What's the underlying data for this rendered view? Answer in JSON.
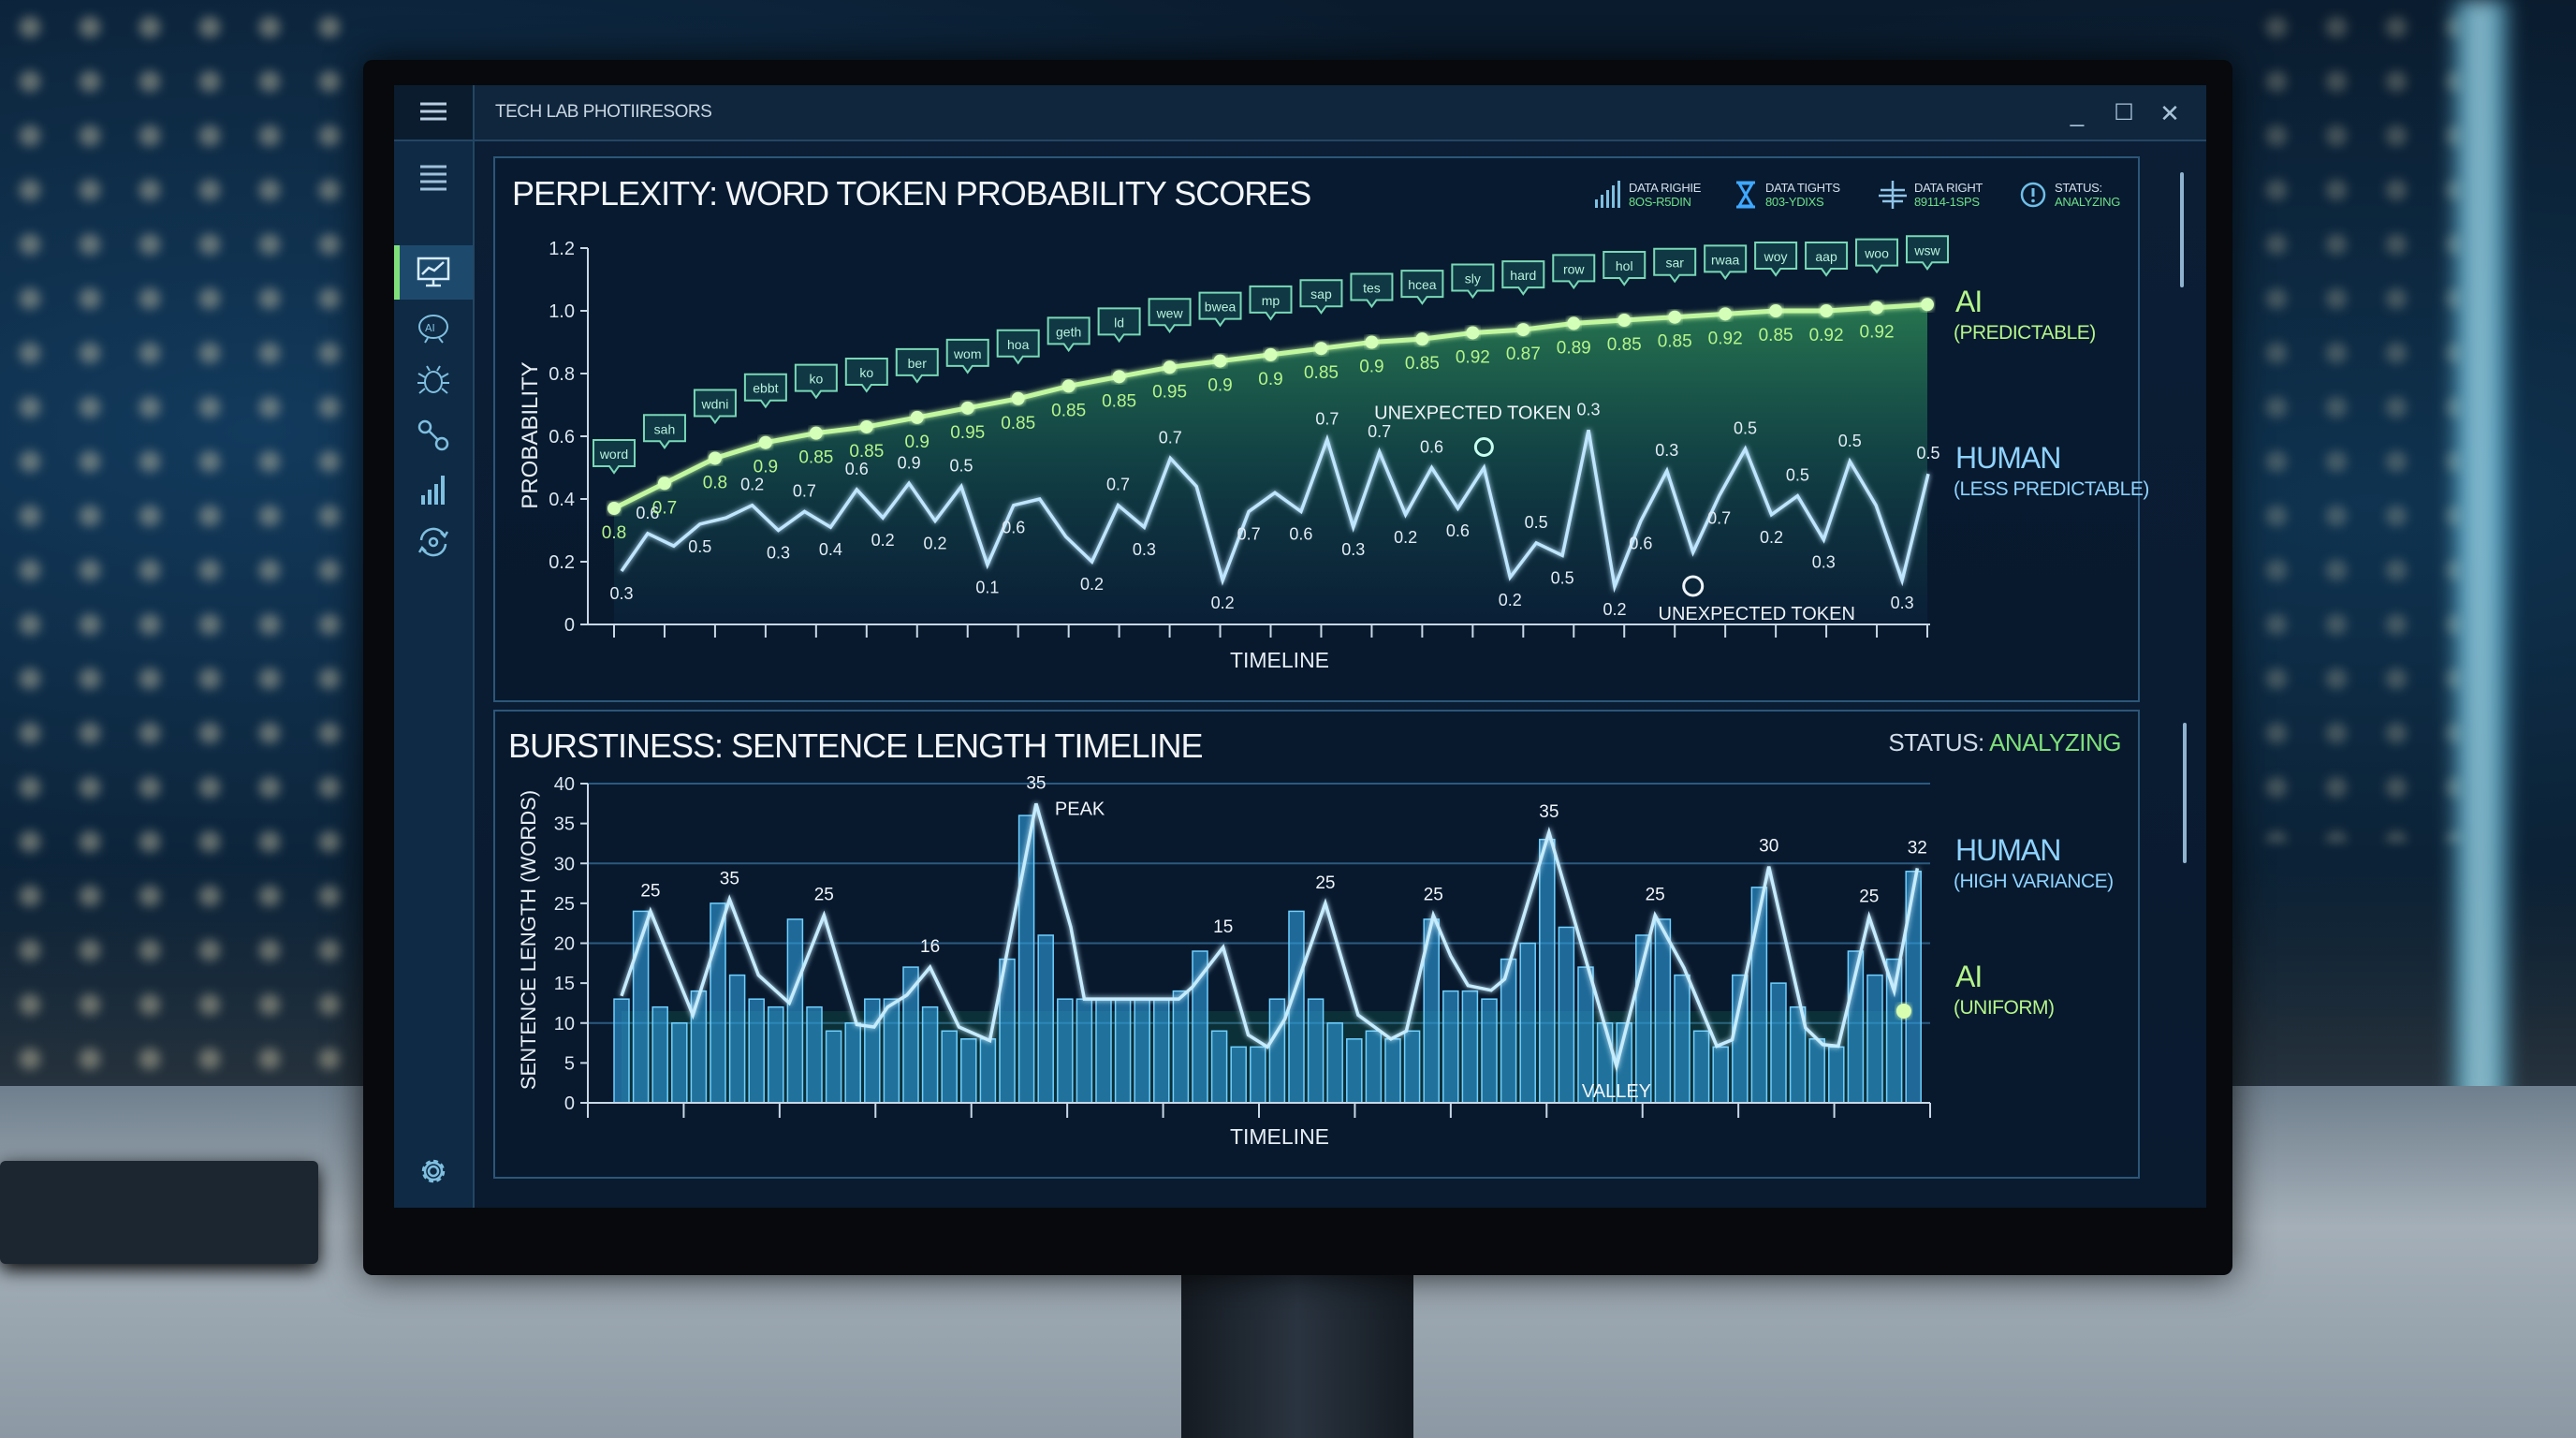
{
  "window": {
    "title": "TECH LAB PHOTIIRESORS",
    "controls": {
      "minimize": "_",
      "maximize": "☐",
      "close": "✕"
    }
  },
  "sidebar": {
    "items": [
      {
        "icon": "list-icon"
      },
      {
        "icon": "monitor-chart-icon",
        "active": true
      },
      {
        "icon": "ai-brain-icon"
      },
      {
        "icon": "bug-icon"
      },
      {
        "icon": "link-icon"
      },
      {
        "icon": "bar-chart-icon"
      },
      {
        "icon": "sync-icon"
      }
    ],
    "settings_icon": "gear-icon"
  },
  "perplexity_panel": {
    "title": "PERPLEXITY: WORD TOKEN PROBABILITY SCORES",
    "stats": [
      {
        "icon": "signal-bars-icon",
        "label": "DATA RIGHIE",
        "value": "8OS-R5DIN"
      },
      {
        "icon": "hourglass-icon",
        "label": "DATA TIGHTS",
        "value": "803-YDIXS"
      },
      {
        "icon": "network-icon",
        "label": "DATA RIGHT",
        "value": "89114-1SPS"
      },
      {
        "icon": "status-icon",
        "label": "STATUS:",
        "value": "ANALYZING"
      }
    ],
    "legend": {
      "ai": "AI",
      "ai_sub": "(PREDICTABLE)",
      "human": "HUMAN",
      "human_sub": "(LESS PREDICTABLE)"
    }
  },
  "burstiness_panel": {
    "title": "BURSTINESS: SENTENCE LENGTH TIMELINE",
    "status_label": "STATUS:",
    "status_value": "ANALYZING",
    "legend": {
      "human": "HUMAN",
      "human_sub": "(HIGH VARIANCE)",
      "ai": "AI",
      "ai_sub": "(UNIFORM)"
    }
  },
  "colors": {
    "ai": "#b4f58a",
    "human": "#8fd3ff",
    "bars": "#2f9fe0",
    "status_green": "#7fe07a",
    "background": "#0a1a2f"
  },
  "chart_data": [
    {
      "type": "line",
      "title": "PERPLEXITY: WORD TOKEN PROBABILITY SCORES",
      "xlabel": "TIMELINE",
      "ylabel": "PROBABILITY",
      "ylim": [
        0,
        1.2
      ],
      "yticks": [
        "0",
        "0.2",
        "0.4",
        "0.6",
        "0.8",
        "1.0",
        "1.2"
      ],
      "grid": false,
      "legend": "right",
      "series": [
        {
          "name": "AI",
          "values": [
            0.37,
            0.45,
            0.53,
            0.58,
            0.61,
            0.63,
            0.66,
            0.69,
            0.72,
            0.76,
            0.79,
            0.82,
            0.84,
            0.86,
            0.88,
            0.9,
            0.91,
            0.93,
            0.94,
            0.96,
            0.97,
            0.98,
            0.99,
            1.0,
            1.0,
            1.01,
            1.02
          ],
          "value_labels": [
            "0.8",
            "0.7",
            "0.8",
            "0.9",
            "0.85",
            "0.85",
            "0.9",
            "0.95",
            "0.85",
            "0.85",
            "0.85",
            "0.95",
            "0.9",
            "0.9",
            "0.85",
            "0.9",
            "0.85",
            "0.92",
            "0.87",
            "0.89",
            "0.85",
            "0.85",
            "0.92",
            "0.85",
            "0.92",
            "0.92",
            ""
          ],
          "token_labels": [
            "word",
            "sah",
            "wdni",
            "ebbt",
            "ko",
            "ko",
            "ber",
            "wom",
            "hoa",
            "geth",
            "ld",
            "wew",
            "bwea",
            "mp",
            "sap",
            "tes",
            "hcea",
            "sly",
            "hard",
            "row",
            "hol",
            "sar",
            "rwaa",
            "woy",
            "aap",
            "woo",
            "wsw"
          ]
        },
        {
          "name": "HUMAN",
          "values": [
            0.17,
            0.29,
            0.25,
            0.32,
            0.34,
            0.38,
            0.3,
            0.36,
            0.31,
            0.43,
            0.34,
            0.45,
            0.33,
            0.44,
            0.19,
            0.38,
            0.4,
            0.28,
            0.2,
            0.38,
            0.31,
            0.53,
            0.44,
            0.14,
            0.36,
            0.42,
            0.36,
            0.59,
            0.31,
            0.55,
            0.35,
            0.5,
            0.37,
            0.5,
            0.15,
            0.26,
            0.22,
            0.62,
            0.12,
            0.33,
            0.49,
            0.23,
            0.41,
            0.56,
            0.35,
            0.41,
            0.27,
            0.52,
            0.38,
            0.14,
            0.48
          ],
          "value_labels": [
            "0.3",
            "0.6",
            "",
            "0.5",
            "",
            "0.2",
            "0.3",
            "0.7",
            "0.4",
            "0.6",
            "0.2",
            "0.9",
            "0.2",
            "0.5",
            "0.1",
            "0.6",
            "",
            "",
            "0.2",
            "0.7",
            "0.3",
            "0.7",
            "",
            "0.2",
            "0.7",
            "",
            "0.6",
            "0.7",
            "0.3",
            "0.7",
            "0.2",
            "0.6",
            "0.6",
            "",
            "0.2",
            "0.5",
            "0.5",
            "0.3",
            "0.2",
            "0.6",
            "0.3",
            "",
            "0.7",
            "0.5",
            "0.2",
            "0.5",
            "0.3",
            "0.5",
            "",
            "0.3",
            "0.5"
          ]
        }
      ],
      "annotations": [
        {
          "text": "UNEXPECTED TOKEN",
          "series": "HUMAN",
          "index": 33,
          "placement": "above"
        },
        {
          "text": "UNEXPECTED TOKEN",
          "series": "HUMAN",
          "index": 41,
          "placement": "below"
        }
      ]
    },
    {
      "type": "bar",
      "title": "BURSTINESS: SENTENCE LENGTH TIMELINE",
      "xlabel": "TIMELINE",
      "ylabel": "SENTENCE LENGTH (WORDS)",
      "ylim": [
        0,
        40
      ],
      "yticks": [
        "0",
        "5",
        "10",
        "15",
        "20",
        "25",
        "30",
        "35",
        "40"
      ],
      "grid": true,
      "legend": "right",
      "bars": [
        13,
        24,
        12,
        10,
        14,
        25,
        16,
        13,
        12,
        23,
        12,
        9,
        10,
        13,
        13,
        17,
        12,
        9,
        8,
        8,
        18,
        36,
        21,
        13,
        13,
        13,
        13,
        13,
        13,
        14,
        19,
        9,
        7,
        7,
        13,
        24,
        13,
        10,
        8,
        9,
        8,
        9,
        23,
        14,
        14,
        13,
        18,
        20,
        33,
        22,
        17,
        10,
        10,
        21,
        23,
        16,
        9,
        7,
        16,
        27,
        15,
        12,
        8,
        7,
        19,
        16,
        18,
        29
      ],
      "series": [
        {
          "name": "HUMAN",
          "type": "line",
          "x": [
            0,
            1.5,
            3.7,
            5.6,
            7.1,
            8.7,
            10.5,
            12.2,
            13.1,
            13.8,
            14.8,
            16.0,
            17.5,
            19.1,
            21.5,
            23.3,
            24.0,
            28.9,
            29.6,
            31.2,
            32.5,
            33.5,
            34.4,
            36.5,
            38.2,
            39.9,
            40.7,
            42.1,
            43.0,
            43.9,
            45.1,
            45.8,
            48.1,
            51.6,
            53.6,
            55.1,
            56.8,
            57.6,
            59.5,
            61.4,
            62.3,
            63.1,
            64.7,
            66.0,
            67.2
          ],
          "y": [
            13.4,
            24,
            11,
            25.5,
            16,
            12.5,
            23.5,
            9.8,
            9.5,
            12,
            13.5,
            17,
            9.5,
            7.8,
            37.5,
            22,
            13,
            13,
            14.5,
            19.5,
            8.5,
            7,
            10.5,
            25,
            11,
            8,
            9,
            23.5,
            18.4,
            14.7,
            14.1,
            15.5,
            33.9,
            4.6,
            23.5,
            16.9,
            7.1,
            7.9,
            29.6,
            9.4,
            7.3,
            7.1,
            23.3,
            14,
            29.4
          ]
        },
        {
          "name": "AI",
          "type": "line",
          "x": [
            0,
            66.5
          ],
          "y": [
            11.5,
            11.5
          ]
        }
      ],
      "peak_labels": [
        {
          "text": "25",
          "x": 1.5
        },
        {
          "text": "35",
          "x": 5.6
        },
        {
          "text": "25",
          "x": 10.5
        },
        {
          "text": "16",
          "x": 16.0
        },
        {
          "text": "35",
          "x": 21.5
        },
        {
          "text": "15",
          "x": 31.2
        },
        {
          "text": "25",
          "x": 36.5
        },
        {
          "text": "25",
          "x": 42.1
        },
        {
          "text": "35",
          "x": 48.1
        },
        {
          "text": "25",
          "x": 53.6
        },
        {
          "text": "30",
          "x": 59.5
        },
        {
          "text": "25",
          "x": 64.7
        },
        {
          "text": "32",
          "x": 67.2
        }
      ],
      "annotations": [
        {
          "text": "PEAK",
          "x": 21.5
        },
        {
          "text": "VALLEY",
          "x": 51.6
        }
      ]
    }
  ]
}
